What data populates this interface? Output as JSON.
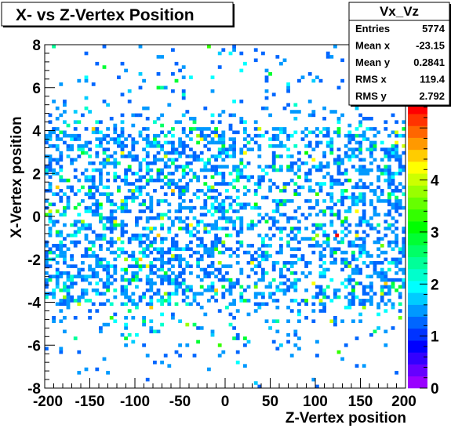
{
  "title": "X- vs Z-Vertex Position",
  "stats": {
    "name": "Vx_Vz",
    "rows": [
      {
        "label": "Entries",
        "value": "5774"
      },
      {
        "label": "Mean x",
        "value": "-23.15"
      },
      {
        "label": "Mean y",
        "value": "0.2841"
      },
      {
        "label": "RMS x",
        "value": "119.4"
      },
      {
        "label": "RMS y",
        "value": "2.792"
      }
    ]
  },
  "chart_data": {
    "type": "heatmap",
    "title": "X- vs Z-Vertex Position",
    "xlabel": "Z-Vertex position",
    "ylabel": "X-Vertex position",
    "xlim": [
      -200,
      200
    ],
    "ylim": [
      -8,
      8
    ],
    "xticks": [
      "-200",
      "-150",
      "-100",
      "-50",
      "0",
      "50",
      "100",
      "150",
      "200"
    ],
    "yticks": [
      "-8",
      "-6",
      "-4",
      "-2",
      "0",
      "2",
      "4",
      "6",
      "8"
    ],
    "bins": {
      "nx": 100,
      "ny": 100
    },
    "zlim": [
      0,
      5
    ],
    "zticks": [
      "0",
      "1",
      "2",
      "3",
      "4"
    ],
    "grid": false,
    "palette": [
      "#9900ff",
      "#6600ff",
      "#3300ff",
      "#0000ff",
      "#0033ff",
      "#0066ff",
      "#0099ff",
      "#00ccff",
      "#00ffff",
      "#00ffcc",
      "#00ff99",
      "#00ff66",
      "#00ff33",
      "#00ff00",
      "#33ff00",
      "#66ff00",
      "#99ff00",
      "#ccff00",
      "#ffff00",
      "#ffcc00",
      "#ff9900",
      "#ff6600",
      "#ff3300",
      "#ff0000"
    ],
    "max_cell": {
      "x": 122,
      "y": -0.8,
      "z": 5
    }
  }
}
